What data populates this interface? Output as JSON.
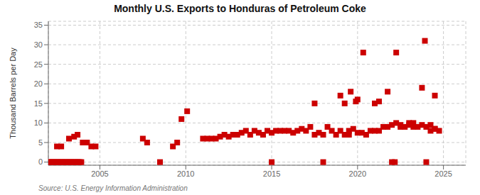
{
  "chart_data": {
    "type": "scatter",
    "title": "Monthly U.S. Exports to Honduras of Petroleum Coke",
    "y_label": "Thousand Barrels per Day",
    "annotations": [
      "Source: U.S. Energy Information Administration"
    ],
    "color": "#cc0000",
    "marker": "square",
    "grid": true,
    "xlim": [
      2002.0,
      2026.3
    ],
    "ylim": [
      -0.8,
      36
    ],
    "xticks": [
      2005,
      2010,
      2015,
      2020,
      2025
    ],
    "yticks": [
      0,
      5,
      10,
      15,
      20,
      25,
      30,
      35
    ],
    "x": [
      2002.0,
      2002.08,
      2002.17,
      2002.25,
      2002.33,
      2002.42,
      2002.5,
      2002.58,
      2002.67,
      2002.75,
      2002.83,
      2002.92,
      2003.0,
      2003.08,
      2003.17,
      2003.25,
      2003.33,
      2003.42,
      2003.5,
      2003.58,
      2003.67,
      2003.75,
      2003.83,
      2003.92,
      2002.5,
      2002.75,
      2003.2,
      2003.5,
      2003.7,
      2004.0,
      2004.25,
      2004.5,
      2004.75,
      2007.5,
      2007.75,
      2008.5,
      2009.25,
      2009.5,
      2009.75,
      2010.08,
      2011.0,
      2011.25,
      2011.5,
      2011.75,
      2012.0,
      2012.25,
      2012.5,
      2012.75,
      2013.0,
      2013.25,
      2013.5,
      2013.75,
      2014.0,
      2014.25,
      2014.5,
      2014.75,
      2015.0,
      2015.0,
      2015.25,
      2015.5,
      2015.75,
      2016.0,
      2016.25,
      2016.5,
      2016.75,
      2017.0,
      2017.25,
      2017.5,
      2017.75,
      2018.0,
      2017.5,
      2018.0,
      2018.25,
      2018.5,
      2018.75,
      2019.0,
      2019.25,
      2019.5,
      2019.0,
      2019.25,
      2019.5,
      2019.75,
      2019.6,
      2019.9,
      2020.0,
      2020.25,
      2020.5,
      2020.0,
      2020.33,
      2020.75,
      2021.0,
      2021.25,
      2021.0,
      2021.25,
      2021.5,
      2021.75,
      2022.0,
      2022.25,
      2022.5,
      2021.75,
      2022.25,
      2022.0,
      2022.17,
      2022.5,
      2022.75,
      2023.0,
      2023.25,
      2023.5,
      2023.75,
      2024.0,
      2024.25,
      2024.5,
      2023.0,
      2023.25,
      2023.75,
      2023.92,
      2024.0,
      2024.25,
      2024.5,
      2024.75,
      2024.5
    ],
    "values": [
      0,
      0,
      0,
      0,
      0,
      0,
      0,
      0,
      0,
      0,
      0,
      0,
      0,
      0,
      0,
      0,
      0,
      0,
      0,
      0,
      0,
      0,
      0,
      0,
      4,
      4,
      6,
      6.5,
      7,
      5,
      5,
      4,
      4,
      6,
      5,
      0,
      4,
      5,
      11,
      13,
      6,
      6,
      6,
      6,
      6.5,
      7,
      6.5,
      7,
      7,
      7.5,
      8,
      7,
      8,
      7.5,
      7,
      8,
      7.5,
      0,
      8,
      8,
      8,
      8,
      7.5,
      8,
      8.5,
      8,
      9,
      7,
      7.5,
      7,
      15,
      0,
      9,
      8,
      7,
      8,
      7,
      7,
      17,
      15,
      8,
      8.5,
      18,
      15.5,
      7.5,
      7.5,
      7,
      16,
      28,
      8,
      8,
      8,
      15,
      15.5,
      9,
      9,
      9.5,
      10,
      9.5,
      18,
      28,
      0,
      0,
      9,
      9,
      9.5,
      9,
      9,
      9.5,
      9,
      9.5,
      8.5,
      10,
      10,
      19,
      31,
      0,
      8,
      8.5,
      8,
      17
    ]
  }
}
